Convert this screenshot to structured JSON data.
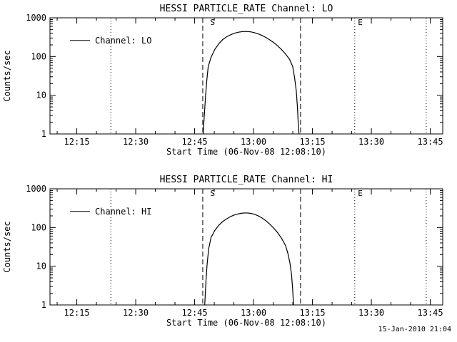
{
  "page": {
    "background": "#ffffff",
    "footer_timestamp": "15-Jan-2010 21:04"
  },
  "chart_data": [
    {
      "type": "line",
      "channel": "LO",
      "title": "HESSI PARTICLE_RATE Channel: LO",
      "xlabel": "Start Time (06-Nov-08 12:08:10)",
      "ylabel": "Counts/sec",
      "y_scale": "log",
      "ylim": [
        1,
        1000
      ],
      "y_ticks": [
        1,
        10,
        100,
        1000
      ],
      "x_axis": {
        "start_time": "12:08:10",
        "duration_minutes": 100,
        "major_ticks": [
          {
            "minute": 6.83,
            "label": "12:15"
          },
          {
            "minute": 21.83,
            "label": "12:30"
          },
          {
            "minute": 36.83,
            "label": "12:45"
          },
          {
            "minute": 51.83,
            "label": "13:00"
          },
          {
            "minute": 66.83,
            "label": "13:15"
          },
          {
            "minute": 81.83,
            "label": "13:30"
          },
          {
            "minute": 96.83,
            "label": "13:45"
          }
        ],
        "minor_tick_start_minute": 1.83,
        "minor_tick_step_minutes": 5
      },
      "legend": {
        "label": "Channel: LO"
      },
      "reference_lines": {
        "dashed_minutes": [
          38.9,
          63.8
        ],
        "dotted_minutes": [
          15.5,
          77.6,
          95.8
        ]
      },
      "annotations": [
        {
          "text": "S",
          "minute": 40.8
        },
        {
          "text": "E",
          "minute": 78.4
        }
      ],
      "series": [
        {
          "name": "Channel: LO",
          "points_minute_value": [
            [
              39.0,
              1
            ],
            [
              39.3,
              3
            ],
            [
              39.6,
              9
            ],
            [
              39.9,
              22
            ],
            [
              40.3,
              55
            ],
            [
              41,
              95
            ],
            [
              42,
              155
            ],
            [
              43,
              215
            ],
            [
              44,
              275
            ],
            [
              45,
              325
            ],
            [
              46,
              365
            ],
            [
              47,
              400
            ],
            [
              48,
              425
            ],
            [
              49,
              440
            ],
            [
              50,
              443
            ],
            [
              51,
              435
            ],
            [
              52,
              415
            ],
            [
              53,
              385
            ],
            [
              54,
              350
            ],
            [
              55,
              310
            ],
            [
              56,
              268
            ],
            [
              57,
              228
            ],
            [
              58,
              188
            ],
            [
              59,
              150
            ],
            [
              60,
              115
            ],
            [
              61,
              85
            ],
            [
              61.8,
              55
            ],
            [
              62.3,
              28
            ],
            [
              62.7,
              13
            ],
            [
              63.0,
              5
            ],
            [
              63.2,
              2
            ],
            [
              63.4,
              1
            ]
          ]
        }
      ]
    },
    {
      "type": "line",
      "channel": "HI",
      "title": "HESSI PARTICLE_RATE Channel: HI",
      "xlabel": "Start Time (06-Nov-08 12:08:10)",
      "ylabel": "Counts/sec",
      "y_scale": "log",
      "ylim": [
        1,
        1000
      ],
      "y_ticks": [
        1,
        10,
        100,
        1000
      ],
      "x_axis": {
        "start_time": "12:08:10",
        "duration_minutes": 100,
        "major_ticks": [
          {
            "minute": 6.83,
            "label": "12:15"
          },
          {
            "minute": 21.83,
            "label": "12:30"
          },
          {
            "minute": 36.83,
            "label": "12:45"
          },
          {
            "minute": 51.83,
            "label": "13:00"
          },
          {
            "minute": 66.83,
            "label": "13:15"
          },
          {
            "minute": 81.83,
            "label": "13:30"
          },
          {
            "minute": 96.83,
            "label": "13:45"
          }
        ],
        "minor_tick_start_minute": 1.83,
        "minor_tick_step_minutes": 5
      },
      "legend": {
        "label": "Channel: HI"
      },
      "reference_lines": {
        "dashed_minutes": [
          38.9,
          63.8
        ],
        "dotted_minutes": [
          15.5,
          77.6,
          95.8
        ]
      },
      "annotations": [
        {
          "text": "S",
          "minute": 40.8
        },
        {
          "text": "E",
          "minute": 78.4
        }
      ],
      "series": [
        {
          "name": "Channel: HI",
          "points_minute_value": [
            [
              39.4,
              1
            ],
            [
              39.7,
              4
            ],
            [
              40.0,
              11
            ],
            [
              40.4,
              28
            ],
            [
              41,
              55
            ],
            [
              42,
              85
            ],
            [
              43,
              115
            ],
            [
              44,
              143
            ],
            [
              45,
              168
            ],
            [
              46,
              192
            ],
            [
              47,
              212
            ],
            [
              48,
              226
            ],
            [
              49,
              236
            ],
            [
              50,
              239
            ],
            [
              51,
              233
            ],
            [
              52,
              221
            ],
            [
              53,
              201
            ],
            [
              54,
              176
            ],
            [
              55,
              149
            ],
            [
              56,
              121
            ],
            [
              57,
              96
            ],
            [
              58,
              73
            ],
            [
              59,
              52
            ],
            [
              60,
              34
            ],
            [
              60.6,
              21
            ],
            [
              61.1,
              12
            ],
            [
              61.5,
              6
            ],
            [
              61.8,
              2.5
            ],
            [
              62.0,
              1
            ]
          ]
        }
      ]
    }
  ]
}
